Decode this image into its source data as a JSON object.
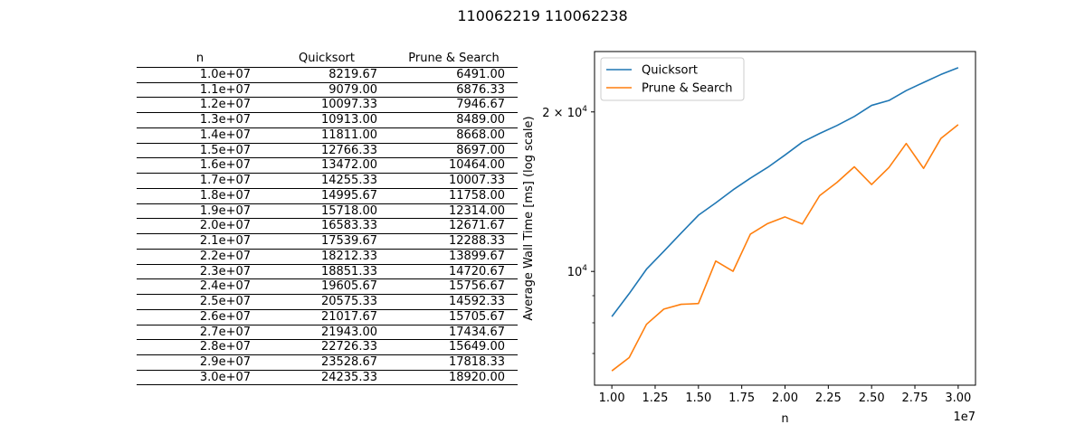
{
  "figure": {
    "title": "110062219 110062238"
  },
  "table": {
    "headers": [
      "n",
      "Quicksort",
      "Prune & Search"
    ],
    "rows": [
      [
        "1.0e+07",
        "8219.67",
        "6491.00"
      ],
      [
        "1.1e+07",
        "9079.00",
        "6876.33"
      ],
      [
        "1.2e+07",
        "10097.33",
        "7946.67"
      ],
      [
        "1.3e+07",
        "10913.00",
        "8489.00"
      ],
      [
        "1.4e+07",
        "11811.00",
        "8668.00"
      ],
      [
        "1.5e+07",
        "12766.33",
        "8697.00"
      ],
      [
        "1.6e+07",
        "13472.00",
        "10464.00"
      ],
      [
        "1.7e+07",
        "14255.33",
        "10007.33"
      ],
      [
        "1.8e+07",
        "14995.67",
        "11758.00"
      ],
      [
        "1.9e+07",
        "15718.00",
        "12314.00"
      ],
      [
        "2.0e+07",
        "16583.33",
        "12671.67"
      ],
      [
        "2.1e+07",
        "17539.67",
        "12288.33"
      ],
      [
        "2.2e+07",
        "18212.33",
        "13899.67"
      ],
      [
        "2.3e+07",
        "18851.33",
        "14720.67"
      ],
      [
        "2.4e+07",
        "19605.67",
        "15756.67"
      ],
      [
        "2.5e+07",
        "20575.33",
        "14592.33"
      ],
      [
        "2.6e+07",
        "21017.67",
        "15705.67"
      ],
      [
        "2.7e+07",
        "21943.00",
        "17434.67"
      ],
      [
        "2.8e+07",
        "22726.33",
        "15649.00"
      ],
      [
        "2.9e+07",
        "23528.67",
        "17818.33"
      ],
      [
        "3.0e+07",
        "24235.33",
        "18920.00"
      ]
    ]
  },
  "chart_data": {
    "type": "line",
    "title": "",
    "xlabel": "n",
    "ylabel": "Average Wall Time [ms] (log scale)",
    "x_offset_label": "1e7",
    "yscale": "log",
    "x": [
      10000000,
      11000000,
      12000000,
      13000000,
      14000000,
      15000000,
      16000000,
      17000000,
      18000000,
      19000000,
      20000000,
      21000000,
      22000000,
      23000000,
      24000000,
      25000000,
      26000000,
      27000000,
      28000000,
      29000000,
      30000000
    ],
    "series": [
      {
        "name": "Quicksort",
        "color": "#1f77b4",
        "values": [
          8219.67,
          9079.0,
          10097.33,
          10913.0,
          11811.0,
          12766.33,
          13472.0,
          14255.33,
          14995.67,
          15718.0,
          16583.33,
          17539.67,
          18212.33,
          18851.33,
          19605.67,
          20575.33,
          21017.67,
          21943.0,
          22726.33,
          23528.67,
          24235.33
        ]
      },
      {
        "name": "Prune & Search",
        "color": "#ff7f0e",
        "values": [
          6491.0,
          6876.33,
          7946.67,
          8489.0,
          8668.0,
          8697.0,
          10464.0,
          10007.33,
          11758.0,
          12314.0,
          12671.67,
          12288.33,
          13899.67,
          14720.67,
          15756.67,
          14592.33,
          15705.67,
          17434.67,
          15649.0,
          17818.33,
          18920.0
        ]
      }
    ],
    "xlim": [
      9000000,
      31000000
    ],
    "ylim": [
      6100,
      26000
    ],
    "xticks": [
      10000000,
      12500000,
      15000000,
      17500000,
      20000000,
      22500000,
      25000000,
      27500000,
      30000000
    ],
    "xtick_labels": [
      "1.00",
      "1.25",
      "1.50",
      "1.75",
      "2.00",
      "2.25",
      "2.50",
      "2.75",
      "3.00"
    ],
    "major_yticks": [
      10000,
      20000
    ],
    "major_ytick_labels": [
      {
        "mantissa": "",
        "base": "10",
        "exp": "4"
      },
      {
        "mantissa": "2 × ",
        "base": "10",
        "exp": "4"
      }
    ],
    "minor_yticks": [
      7000,
      8000,
      9000
    ],
    "legend": "upper-left",
    "grid": false
  }
}
